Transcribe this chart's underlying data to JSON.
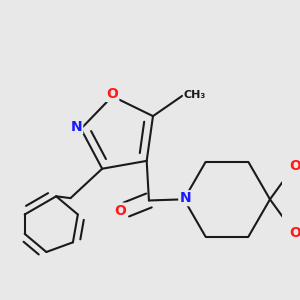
{
  "bg_color": "#e8e8e8",
  "bond_color": "#1a1a1a",
  "bond_width": 1.5,
  "atom_colors": {
    "N": "#1a1aff",
    "O": "#ff1a1a",
    "C": "#1a1a1a"
  },
  "font_size_atom": 10,
  "font_size_methyl": 9
}
